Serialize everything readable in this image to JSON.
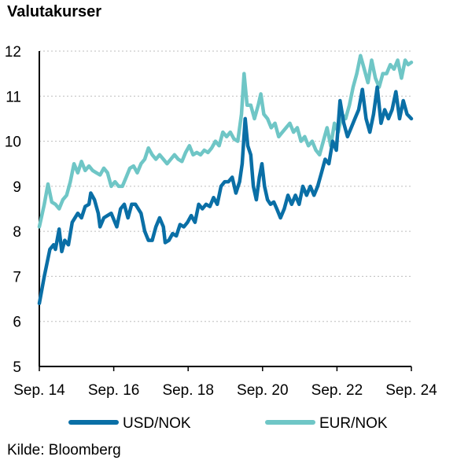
{
  "title": "Valutakurser",
  "source": "Kilde: Bloomberg",
  "chart_data": {
    "type": "line",
    "ylim": [
      5,
      12
    ],
    "yticks": [
      5,
      6,
      7,
      8,
      9,
      10,
      11,
      12
    ],
    "xlim": [
      2014.667,
      2024.667
    ],
    "xticks": [
      {
        "value": 2014.667,
        "label": "Sep. 14"
      },
      {
        "value": 2016.667,
        "label": "Sep. 16"
      },
      {
        "value": 2018.667,
        "label": "Sep. 18"
      },
      {
        "value": 2020.667,
        "label": "Sep. 20"
      },
      {
        "value": 2022.667,
        "label": "Sep. 22"
      },
      {
        "value": 2024.667,
        "label": "Sep. 24"
      }
    ],
    "grid": "horizontal dashed",
    "legend_position": "bottom",
    "series": [
      {
        "name": "USD/NOK",
        "color": "#0a6fa6",
        "points": [
          [
            2014.667,
            6.4
          ],
          [
            2014.8,
            7.0
          ],
          [
            2014.95,
            7.6
          ],
          [
            2015.05,
            7.7
          ],
          [
            2015.1,
            7.6
          ],
          [
            2015.2,
            8.05
          ],
          [
            2015.27,
            7.55
          ],
          [
            2015.35,
            7.8
          ],
          [
            2015.45,
            7.7
          ],
          [
            2015.55,
            8.2
          ],
          [
            2015.7,
            8.4
          ],
          [
            2015.8,
            8.3
          ],
          [
            2015.9,
            8.55
          ],
          [
            2016.0,
            8.6
          ],
          [
            2016.05,
            8.85
          ],
          [
            2016.15,
            8.7
          ],
          [
            2016.25,
            8.4
          ],
          [
            2016.3,
            8.1
          ],
          [
            2016.4,
            8.3
          ],
          [
            2016.5,
            8.35
          ],
          [
            2016.6,
            8.4
          ],
          [
            2016.75,
            8.1
          ],
          [
            2016.85,
            8.5
          ],
          [
            2016.95,
            8.6
          ],
          [
            2017.05,
            8.3
          ],
          [
            2017.15,
            8.6
          ],
          [
            2017.25,
            8.6
          ],
          [
            2017.4,
            8.4
          ],
          [
            2017.5,
            8.0
          ],
          [
            2017.6,
            7.8
          ],
          [
            2017.7,
            7.8
          ],
          [
            2017.8,
            8.1
          ],
          [
            2017.9,
            8.3
          ],
          [
            2018.0,
            8.1
          ],
          [
            2018.05,
            7.75
          ],
          [
            2018.15,
            7.8
          ],
          [
            2018.25,
            7.95
          ],
          [
            2018.35,
            7.9
          ],
          [
            2018.45,
            8.15
          ],
          [
            2018.55,
            8.1
          ],
          [
            2018.65,
            8.2
          ],
          [
            2018.75,
            8.35
          ],
          [
            2018.85,
            8.2
          ],
          [
            2018.95,
            8.6
          ],
          [
            2019.05,
            8.5
          ],
          [
            2019.15,
            8.6
          ],
          [
            2019.25,
            8.55
          ],
          [
            2019.35,
            8.75
          ],
          [
            2019.45,
            8.6
          ],
          [
            2019.55,
            9.0
          ],
          [
            2019.65,
            9.1
          ],
          [
            2019.75,
            9.1
          ],
          [
            2019.85,
            9.2
          ],
          [
            2019.95,
            8.85
          ],
          [
            2020.05,
            9.1
          ],
          [
            2020.12,
            9.5
          ],
          [
            2020.2,
            10.5
          ],
          [
            2020.27,
            9.9
          ],
          [
            2020.35,
            9.7
          ],
          [
            2020.42,
            9.0
          ],
          [
            2020.5,
            8.7
          ],
          [
            2020.58,
            9.2
          ],
          [
            2020.65,
            9.5
          ],
          [
            2020.72,
            9.0
          ],
          [
            2020.8,
            8.7
          ],
          [
            2020.88,
            8.6
          ],
          [
            2020.97,
            8.65
          ],
          [
            2021.05,
            8.5
          ],
          [
            2021.15,
            8.3
          ],
          [
            2021.25,
            8.5
          ],
          [
            2021.35,
            8.8
          ],
          [
            2021.45,
            8.6
          ],
          [
            2021.55,
            8.8
          ],
          [
            2021.65,
            8.6
          ],
          [
            2021.75,
            9.0
          ],
          [
            2021.85,
            8.8
          ],
          [
            2021.95,
            9.0
          ],
          [
            2022.05,
            8.8
          ],
          [
            2022.15,
            9.0
          ],
          [
            2022.25,
            9.3
          ],
          [
            2022.35,
            9.6
          ],
          [
            2022.45,
            9.5
          ],
          [
            2022.55,
            10.0
          ],
          [
            2022.65,
            9.8
          ],
          [
            2022.75,
            10.9
          ],
          [
            2022.85,
            10.4
          ],
          [
            2022.95,
            10.1
          ],
          [
            2023.05,
            10.3
          ],
          [
            2023.15,
            10.5
          ],
          [
            2023.25,
            10.7
          ],
          [
            2023.35,
            11.15
          ],
          [
            2023.45,
            10.5
          ],
          [
            2023.55,
            10.2
          ],
          [
            2023.65,
            10.6
          ],
          [
            2023.75,
            11.2
          ],
          [
            2023.85,
            10.4
          ],
          [
            2023.95,
            10.7
          ],
          [
            2024.05,
            10.5
          ],
          [
            2024.15,
            10.7
          ],
          [
            2024.25,
            11.1
          ],
          [
            2024.35,
            10.5
          ],
          [
            2024.45,
            10.9
          ],
          [
            2024.55,
            10.6
          ],
          [
            2024.667,
            10.5
          ]
        ]
      },
      {
        "name": "EUR/NOK",
        "color": "#6fc6c6",
        "points": [
          [
            2014.667,
            8.1
          ],
          [
            2014.8,
            8.6
          ],
          [
            2014.9,
            9.05
          ],
          [
            2015.0,
            8.65
          ],
          [
            2015.1,
            8.6
          ],
          [
            2015.2,
            8.5
          ],
          [
            2015.3,
            8.7
          ],
          [
            2015.4,
            8.8
          ],
          [
            2015.5,
            9.1
          ],
          [
            2015.6,
            9.5
          ],
          [
            2015.7,
            9.3
          ],
          [
            2015.8,
            9.55
          ],
          [
            2015.9,
            9.35
          ],
          [
            2016.0,
            9.45
          ],
          [
            2016.1,
            9.35
          ],
          [
            2016.2,
            9.3
          ],
          [
            2016.3,
            9.25
          ],
          [
            2016.4,
            9.4
          ],
          [
            2016.5,
            9.3
          ],
          [
            2016.6,
            9.0
          ],
          [
            2016.7,
            9.1
          ],
          [
            2016.8,
            9.0
          ],
          [
            2016.9,
            9.0
          ],
          [
            2017.0,
            9.2
          ],
          [
            2017.1,
            9.4
          ],
          [
            2017.2,
            9.45
          ],
          [
            2017.3,
            9.3
          ],
          [
            2017.4,
            9.5
          ],
          [
            2017.5,
            9.6
          ],
          [
            2017.6,
            9.85
          ],
          [
            2017.7,
            9.7
          ],
          [
            2017.8,
            9.6
          ],
          [
            2017.9,
            9.7
          ],
          [
            2018.0,
            9.6
          ],
          [
            2018.1,
            9.5
          ],
          [
            2018.2,
            9.6
          ],
          [
            2018.3,
            9.7
          ],
          [
            2018.4,
            9.6
          ],
          [
            2018.5,
            9.55
          ],
          [
            2018.6,
            9.75
          ],
          [
            2018.7,
            9.9
          ],
          [
            2018.8,
            9.7
          ],
          [
            2018.9,
            9.75
          ],
          [
            2019.0,
            9.7
          ],
          [
            2019.1,
            9.8
          ],
          [
            2019.2,
            9.75
          ],
          [
            2019.3,
            9.85
          ],
          [
            2019.4,
            10.0
          ],
          [
            2019.5,
            9.9
          ],
          [
            2019.6,
            10.2
          ],
          [
            2019.7,
            10.1
          ],
          [
            2019.8,
            10.2
          ],
          [
            2019.9,
            10.05
          ],
          [
            2020.0,
            10.0
          ],
          [
            2020.1,
            10.6
          ],
          [
            2020.17,
            11.5
          ],
          [
            2020.25,
            10.8
          ],
          [
            2020.35,
            10.8
          ],
          [
            2020.45,
            10.5
          ],
          [
            2020.55,
            10.8
          ],
          [
            2020.62,
            11.05
          ],
          [
            2020.7,
            10.6
          ],
          [
            2020.8,
            10.5
          ],
          [
            2020.9,
            10.3
          ],
          [
            2021.0,
            10.4
          ],
          [
            2021.1,
            10.1
          ],
          [
            2021.2,
            10.2
          ],
          [
            2021.3,
            10.3
          ],
          [
            2021.4,
            10.4
          ],
          [
            2021.5,
            10.2
          ],
          [
            2021.6,
            10.3
          ],
          [
            2021.7,
            10.0
          ],
          [
            2021.8,
            10.1
          ],
          [
            2021.9,
            9.9
          ],
          [
            2022.0,
            10.0
          ],
          [
            2022.1,
            9.8
          ],
          [
            2022.2,
            9.7
          ],
          [
            2022.3,
            10.0
          ],
          [
            2022.4,
            10.3
          ],
          [
            2022.5,
            9.9
          ],
          [
            2022.6,
            10.4
          ],
          [
            2022.7,
            10.2
          ],
          [
            2022.8,
            10.6
          ],
          [
            2022.9,
            10.5
          ],
          [
            2023.0,
            10.8
          ],
          [
            2023.1,
            11.2
          ],
          [
            2023.2,
            11.5
          ],
          [
            2023.3,
            11.9
          ],
          [
            2023.4,
            11.6
          ],
          [
            2023.5,
            11.3
          ],
          [
            2023.6,
            11.8
          ],
          [
            2023.7,
            11.4
          ],
          [
            2023.8,
            11.2
          ],
          [
            2023.9,
            11.5
          ],
          [
            2024.0,
            11.5
          ],
          [
            2024.1,
            11.7
          ],
          [
            2024.2,
            11.6
          ],
          [
            2024.3,
            11.8
          ],
          [
            2024.4,
            11.4
          ],
          [
            2024.5,
            11.8
          ],
          [
            2024.58,
            11.7
          ],
          [
            2024.667,
            11.75
          ]
        ]
      }
    ]
  }
}
